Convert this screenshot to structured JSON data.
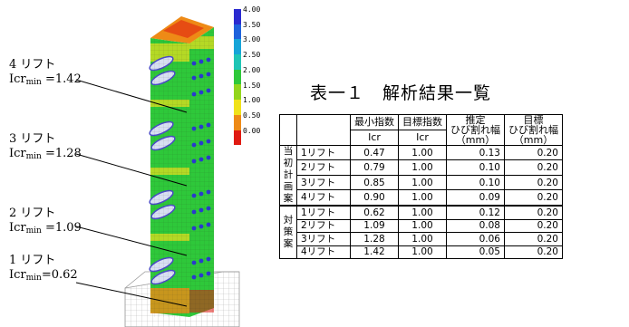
{
  "annotations": [
    {
      "lift": "4 リフト",
      "prefix": "Icr",
      "sub": "min",
      "value": " =1.42"
    },
    {
      "lift": "3 リフト",
      "prefix": "Icr",
      "sub": "min",
      "value": " =1.28"
    },
    {
      "lift": "2 リフト",
      "prefix": "Icr",
      "sub": "min",
      "value": " =1.09"
    },
    {
      "lift": "1 リフト",
      "prefix": "Icr",
      "sub": "min",
      "value": "=0.62"
    }
  ],
  "legend": {
    "labels": [
      "4.00",
      "3.50",
      "3.00",
      "2.50",
      "2.00",
      "1.50",
      "1.00",
      "0.50",
      "0.00"
    ],
    "colors": [
      "#2a2ad0",
      "#1e62dc",
      "#16a4d8",
      "#1fc5b5",
      "#2ec83a",
      "#93d51c",
      "#f0e21a",
      "#ee8a16",
      "#e01a12"
    ]
  },
  "table": {
    "title": "表一１　解析結果一覧",
    "headers": {
      "min_index": "最小指数",
      "target_index": "目標指数",
      "est_crack_line1": "推定",
      "est_crack_line2": "ひび割れ幅",
      "est_crack_unit": "（mm）",
      "target_crack_line1": "目標",
      "target_crack_line2": "ひび割れ幅",
      "target_crack_unit": "（mm）",
      "icr1": "Icr",
      "icr2": "Icr"
    },
    "groups": [
      {
        "label": [
          "当",
          "初",
          "計",
          "画",
          "案"
        ],
        "rows": [
          {
            "lift": "1リフト",
            "min": "0.47",
            "target": "1.00",
            "est": "0.13",
            "goal": "0.20"
          },
          {
            "lift": "2リフト",
            "min": "0.79",
            "target": "1.00",
            "est": "0.10",
            "goal": "0.20"
          },
          {
            "lift": "3リフト",
            "min": "0.85",
            "target": "1.00",
            "est": "0.10",
            "goal": "0.20"
          },
          {
            "lift": "4リフト",
            "min": "0.90",
            "target": "1.00",
            "est": "0.09",
            "goal": "0.20"
          }
        ]
      },
      {
        "label": [
          "対",
          "策",
          "案"
        ],
        "rows": [
          {
            "lift": "1リフト",
            "min": "0.62",
            "target": "1.00",
            "est": "0.12",
            "goal": "0.20"
          },
          {
            "lift": "2リフト",
            "min": "1.09",
            "target": "1.00",
            "est": "0.08",
            "goal": "0.20"
          },
          {
            "lift": "3リフト",
            "min": "1.28",
            "target": "1.00",
            "est": "0.06",
            "goal": "0.20"
          },
          {
            "lift": "4リフト",
            "min": "1.42",
            "target": "1.00",
            "est": "0.05",
            "goal": "0.20"
          }
        ]
      }
    ]
  }
}
